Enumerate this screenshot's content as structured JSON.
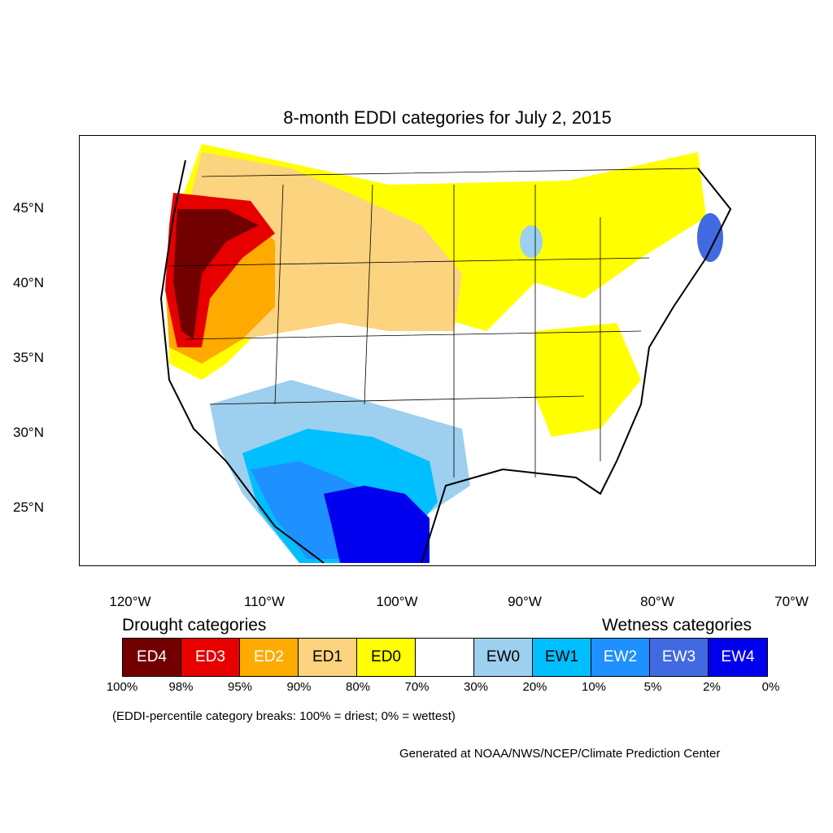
{
  "map": {
    "title": "8-month EDDI categories for July 2, 2015",
    "lat_labels": [
      "45°N",
      "40°N",
      "35°N",
      "30°N",
      "25°N"
    ],
    "lon_labels": [
      "120°W",
      "110°W",
      "100°W",
      "90°W",
      "80°W",
      "70°W"
    ]
  },
  "legend": {
    "drought_heading": "Drought categories",
    "wetness_heading": "Wetness categories",
    "categories": [
      {
        "label": "ED4",
        "color": "#730000",
        "text_color": "#ffffff"
      },
      {
        "label": "ED3",
        "color": "#e60000",
        "text_color": "#ffffff"
      },
      {
        "label": "ED2",
        "color": "#ffaa00",
        "text_color": "#ffffff"
      },
      {
        "label": "ED1",
        "color": "#fcd37f",
        "text_color": "#000000"
      },
      {
        "label": "ED0",
        "color": "#ffff00",
        "text_color": "#000000"
      },
      {
        "label": "",
        "color": "#ffffff",
        "text_color": "#000000"
      },
      {
        "label": "EW0",
        "color": "#9dcfee",
        "text_color": "#000000"
      },
      {
        "label": "EW1",
        "color": "#00bfff",
        "text_color": "#000000"
      },
      {
        "label": "EW2",
        "color": "#1e90ff",
        "text_color": "#ffffff"
      },
      {
        "label": "EW3",
        "color": "#4169e1",
        "text_color": "#ffffff"
      },
      {
        "label": "EW4",
        "color": "#0000ee",
        "text_color": "#ffffff"
      }
    ],
    "percentiles": [
      "100%",
      "98%",
      "95%",
      "90%",
      "80%",
      "70%",
      "30%",
      "20%",
      "10%",
      "5%",
      "2%",
      "0%"
    ],
    "note": "(EDDI-percentile category breaks: 100% = driest; 0% = wettest)"
  },
  "footer": {
    "credit": "Generated at NOAA/NWS/NCEP/Climate Prediction Center"
  }
}
